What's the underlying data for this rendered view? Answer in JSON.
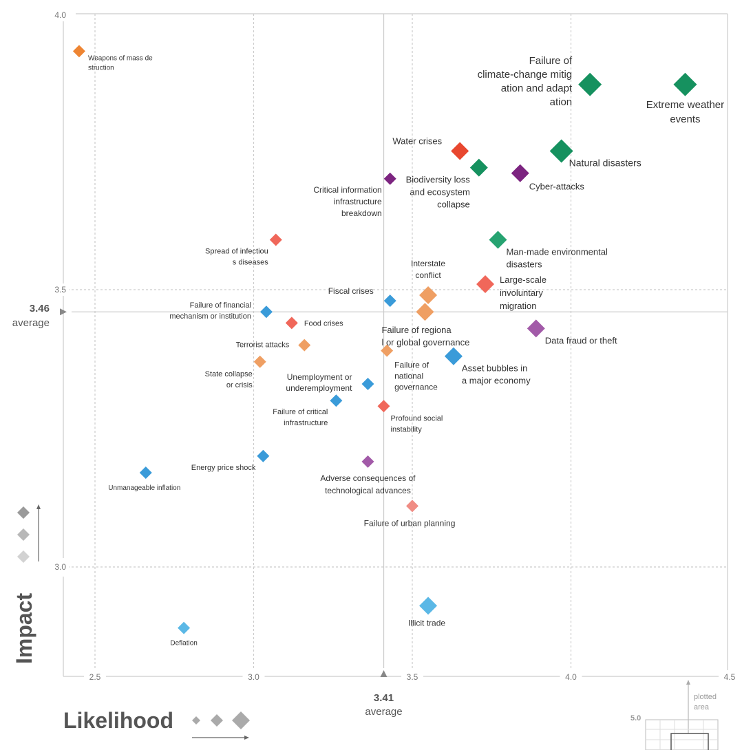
{
  "chart_data": {
    "type": "scatter",
    "xlabel": "Likelihood",
    "ylabel": "Impact",
    "xlim": [
      2.4,
      4.5
    ],
    "ylim": [
      2.8,
      4.0
    ],
    "x_ticks": [
      "2.5",
      "3.0",
      "3.5",
      "4.0",
      "4.5"
    ],
    "y_ticks": [
      "4.0",
      "3.5",
      "3.0"
    ],
    "averages": {
      "x": {
        "value": 3.41,
        "value_label": "3.41",
        "label": "average"
      },
      "y": {
        "value": 3.46,
        "value_label": "3.46",
        "label": "average"
      }
    },
    "grid": true,
    "colors": {
      "economic": "#3a9bd9",
      "economic_light": "#5bb8e6",
      "environmental": "#16915f",
      "environmental_light": "#26a371",
      "geopolitical": "#ef9f63",
      "geopolitical_dark": "#ee8533",
      "societal": "#f0675a",
      "societal_dark": "#e8472f",
      "societal_light": "#f08c84",
      "technological": "#7c2480",
      "technological_light": "#a25aa8"
    },
    "points": [
      {
        "label": "Weapons of mass destruction",
        "x": 2.45,
        "y": 3.93,
        "size": 1,
        "color": "#ee8533"
      },
      {
        "label": "Failure of climate-change mitigation and adaptation",
        "x": 4.06,
        "y": 3.87,
        "size": 3,
        "color": "#16915f"
      },
      {
        "label": "Extreme weather events",
        "x": 4.36,
        "y": 3.87,
        "size": 3,
        "color": "#16915f"
      },
      {
        "label": "Water crises",
        "x": 3.65,
        "y": 3.75,
        "size": 2,
        "color": "#e8472f"
      },
      {
        "label": "Natural disasters",
        "x": 3.97,
        "y": 3.75,
        "size": 3,
        "color": "#16915f"
      },
      {
        "label": "Biodiversity loss and ecosystem collapse",
        "x": 3.71,
        "y": 3.72,
        "size": 2,
        "color": "#16915f"
      },
      {
        "label": "Cyber-attacks",
        "x": 3.84,
        "y": 3.71,
        "size": 2,
        "color": "#7c2480"
      },
      {
        "label": "Critical information infrastructure breakdown",
        "x": 3.43,
        "y": 3.7,
        "size": 1,
        "color": "#7c2480"
      },
      {
        "label": "Spread of infectious diseases",
        "x": 3.07,
        "y": 3.59,
        "size": 1,
        "color": "#f0675a"
      },
      {
        "label": "Man-made environmental disasters",
        "x": 3.77,
        "y": 3.59,
        "size": 2,
        "color": "#26a371"
      },
      {
        "label": "Large-scale involuntary migration",
        "x": 3.73,
        "y": 3.51,
        "size": 2,
        "color": "#f0675a"
      },
      {
        "label": "Interstate conflict",
        "x": 3.55,
        "y": 3.49,
        "size": 2,
        "color": "#ef9f63"
      },
      {
        "label": "Fiscal crises",
        "x": 3.43,
        "y": 3.48,
        "size": 1,
        "color": "#3a9bd9"
      },
      {
        "label": "Failure of regional or global governance",
        "x": 3.54,
        "y": 3.46,
        "size": 2,
        "color": "#ef9f63"
      },
      {
        "label": "Failure of financial mechanism or institution",
        "x": 3.04,
        "y": 3.46,
        "size": 1,
        "color": "#3a9bd9"
      },
      {
        "label": "Food crises",
        "x": 3.12,
        "y": 3.44,
        "size": 1,
        "color": "#f0675a"
      },
      {
        "label": "Data fraud or theft",
        "x": 3.89,
        "y": 3.43,
        "size": 2,
        "color": "#a25aa8"
      },
      {
        "label": "Terrorist attacks",
        "x": 3.16,
        "y": 3.4,
        "size": 1,
        "color": "#ef9f63"
      },
      {
        "label": "Failure of national governance",
        "x": 3.42,
        "y": 3.39,
        "size": 1,
        "color": "#ef9f63"
      },
      {
        "label": "Asset bubbles in a major economy",
        "x": 3.63,
        "y": 3.38,
        "size": 2,
        "color": "#3a9bd9"
      },
      {
        "label": "State collapse or crisis",
        "x": 3.02,
        "y": 3.37,
        "size": 1,
        "color": "#ef9f63"
      },
      {
        "label": "Unemployment or underemployment",
        "x": 3.36,
        "y": 3.33,
        "size": 1,
        "color": "#3a9bd9"
      },
      {
        "label": "Failure of critical infrastructure",
        "x": 3.26,
        "y": 3.3,
        "size": 1,
        "color": "#3a9bd9"
      },
      {
        "label": "Profound social instability",
        "x": 3.41,
        "y": 3.29,
        "size": 1,
        "color": "#f0675a"
      },
      {
        "label": "Energy price shock",
        "x": 3.03,
        "y": 3.2,
        "size": 1,
        "color": "#3a9bd9"
      },
      {
        "label": "Adverse consequences of technological advances",
        "x": 3.36,
        "y": 3.19,
        "size": 1,
        "color": "#a25aa8"
      },
      {
        "label": "Unmanageable inflation",
        "x": 2.66,
        "y": 3.17,
        "size": 1,
        "color": "#3a9bd9"
      },
      {
        "label": "Failure of urban planning",
        "x": 3.5,
        "y": 3.11,
        "size": 1,
        "color": "#f08c84"
      },
      {
        "label": "Illicit trade",
        "x": 3.55,
        "y": 2.93,
        "size": 2,
        "color": "#5bb8e6"
      },
      {
        "label": "Deflation",
        "x": 2.78,
        "y": 2.89,
        "size": 1,
        "color": "#5bb8e6"
      }
    ],
    "inset": {
      "tick_label": "5.0",
      "caption": "plotted area"
    }
  }
}
